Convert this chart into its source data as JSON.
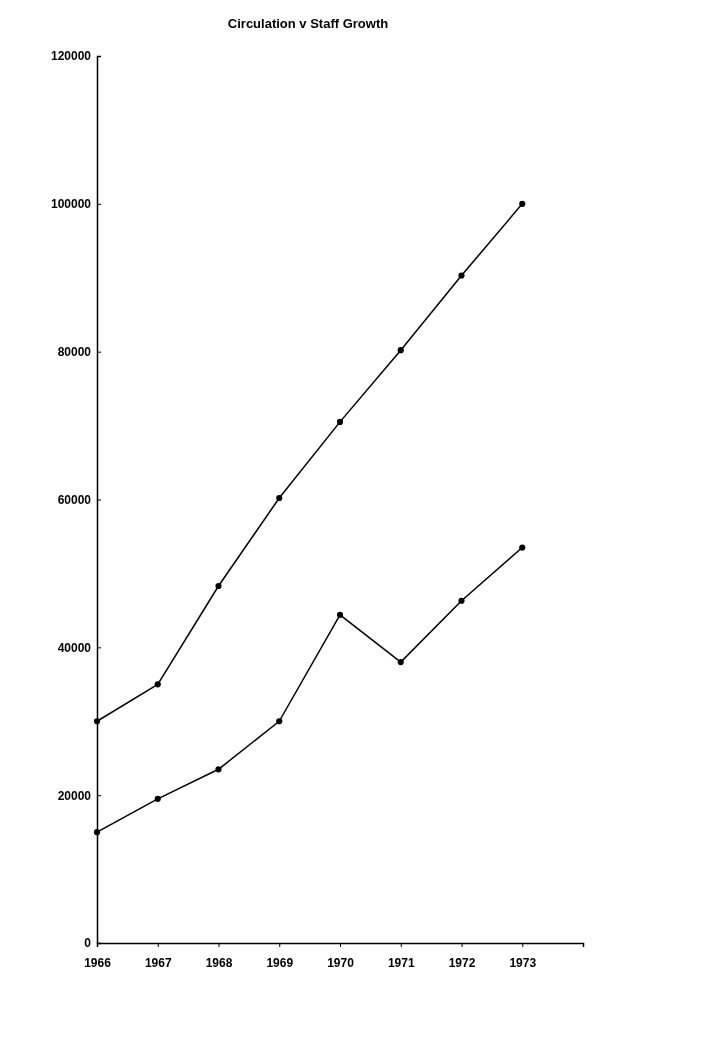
{
  "chart_data": {
    "type": "line",
    "title": "Circulation v Staff Growth",
    "x": [
      1966,
      1967,
      1968,
      1969,
      1970,
      1971,
      1972,
      1973
    ],
    "series": [
      {
        "color": "#000000",
        "values": [
          30000,
          35000,
          48300,
          60200,
          70500,
          80200,
          90300,
          100000
        ]
      },
      {
        "color": "#000000",
        "values": [
          15000,
          19500,
          23500,
          30000,
          44400,
          38000,
          46300,
          53500
        ]
      }
    ],
    "xlim": [
      1966,
      1974
    ],
    "xticks": [
      1966,
      1967,
      1968,
      1969,
      1970,
      1971,
      1972,
      1973
    ],
    "ylim": [
      0,
      120000
    ],
    "yticks": [
      0,
      20000,
      40000,
      60000,
      80000,
      100000,
      120000
    ],
    "grid": false,
    "marker": "circle",
    "line_style": "solid"
  }
}
